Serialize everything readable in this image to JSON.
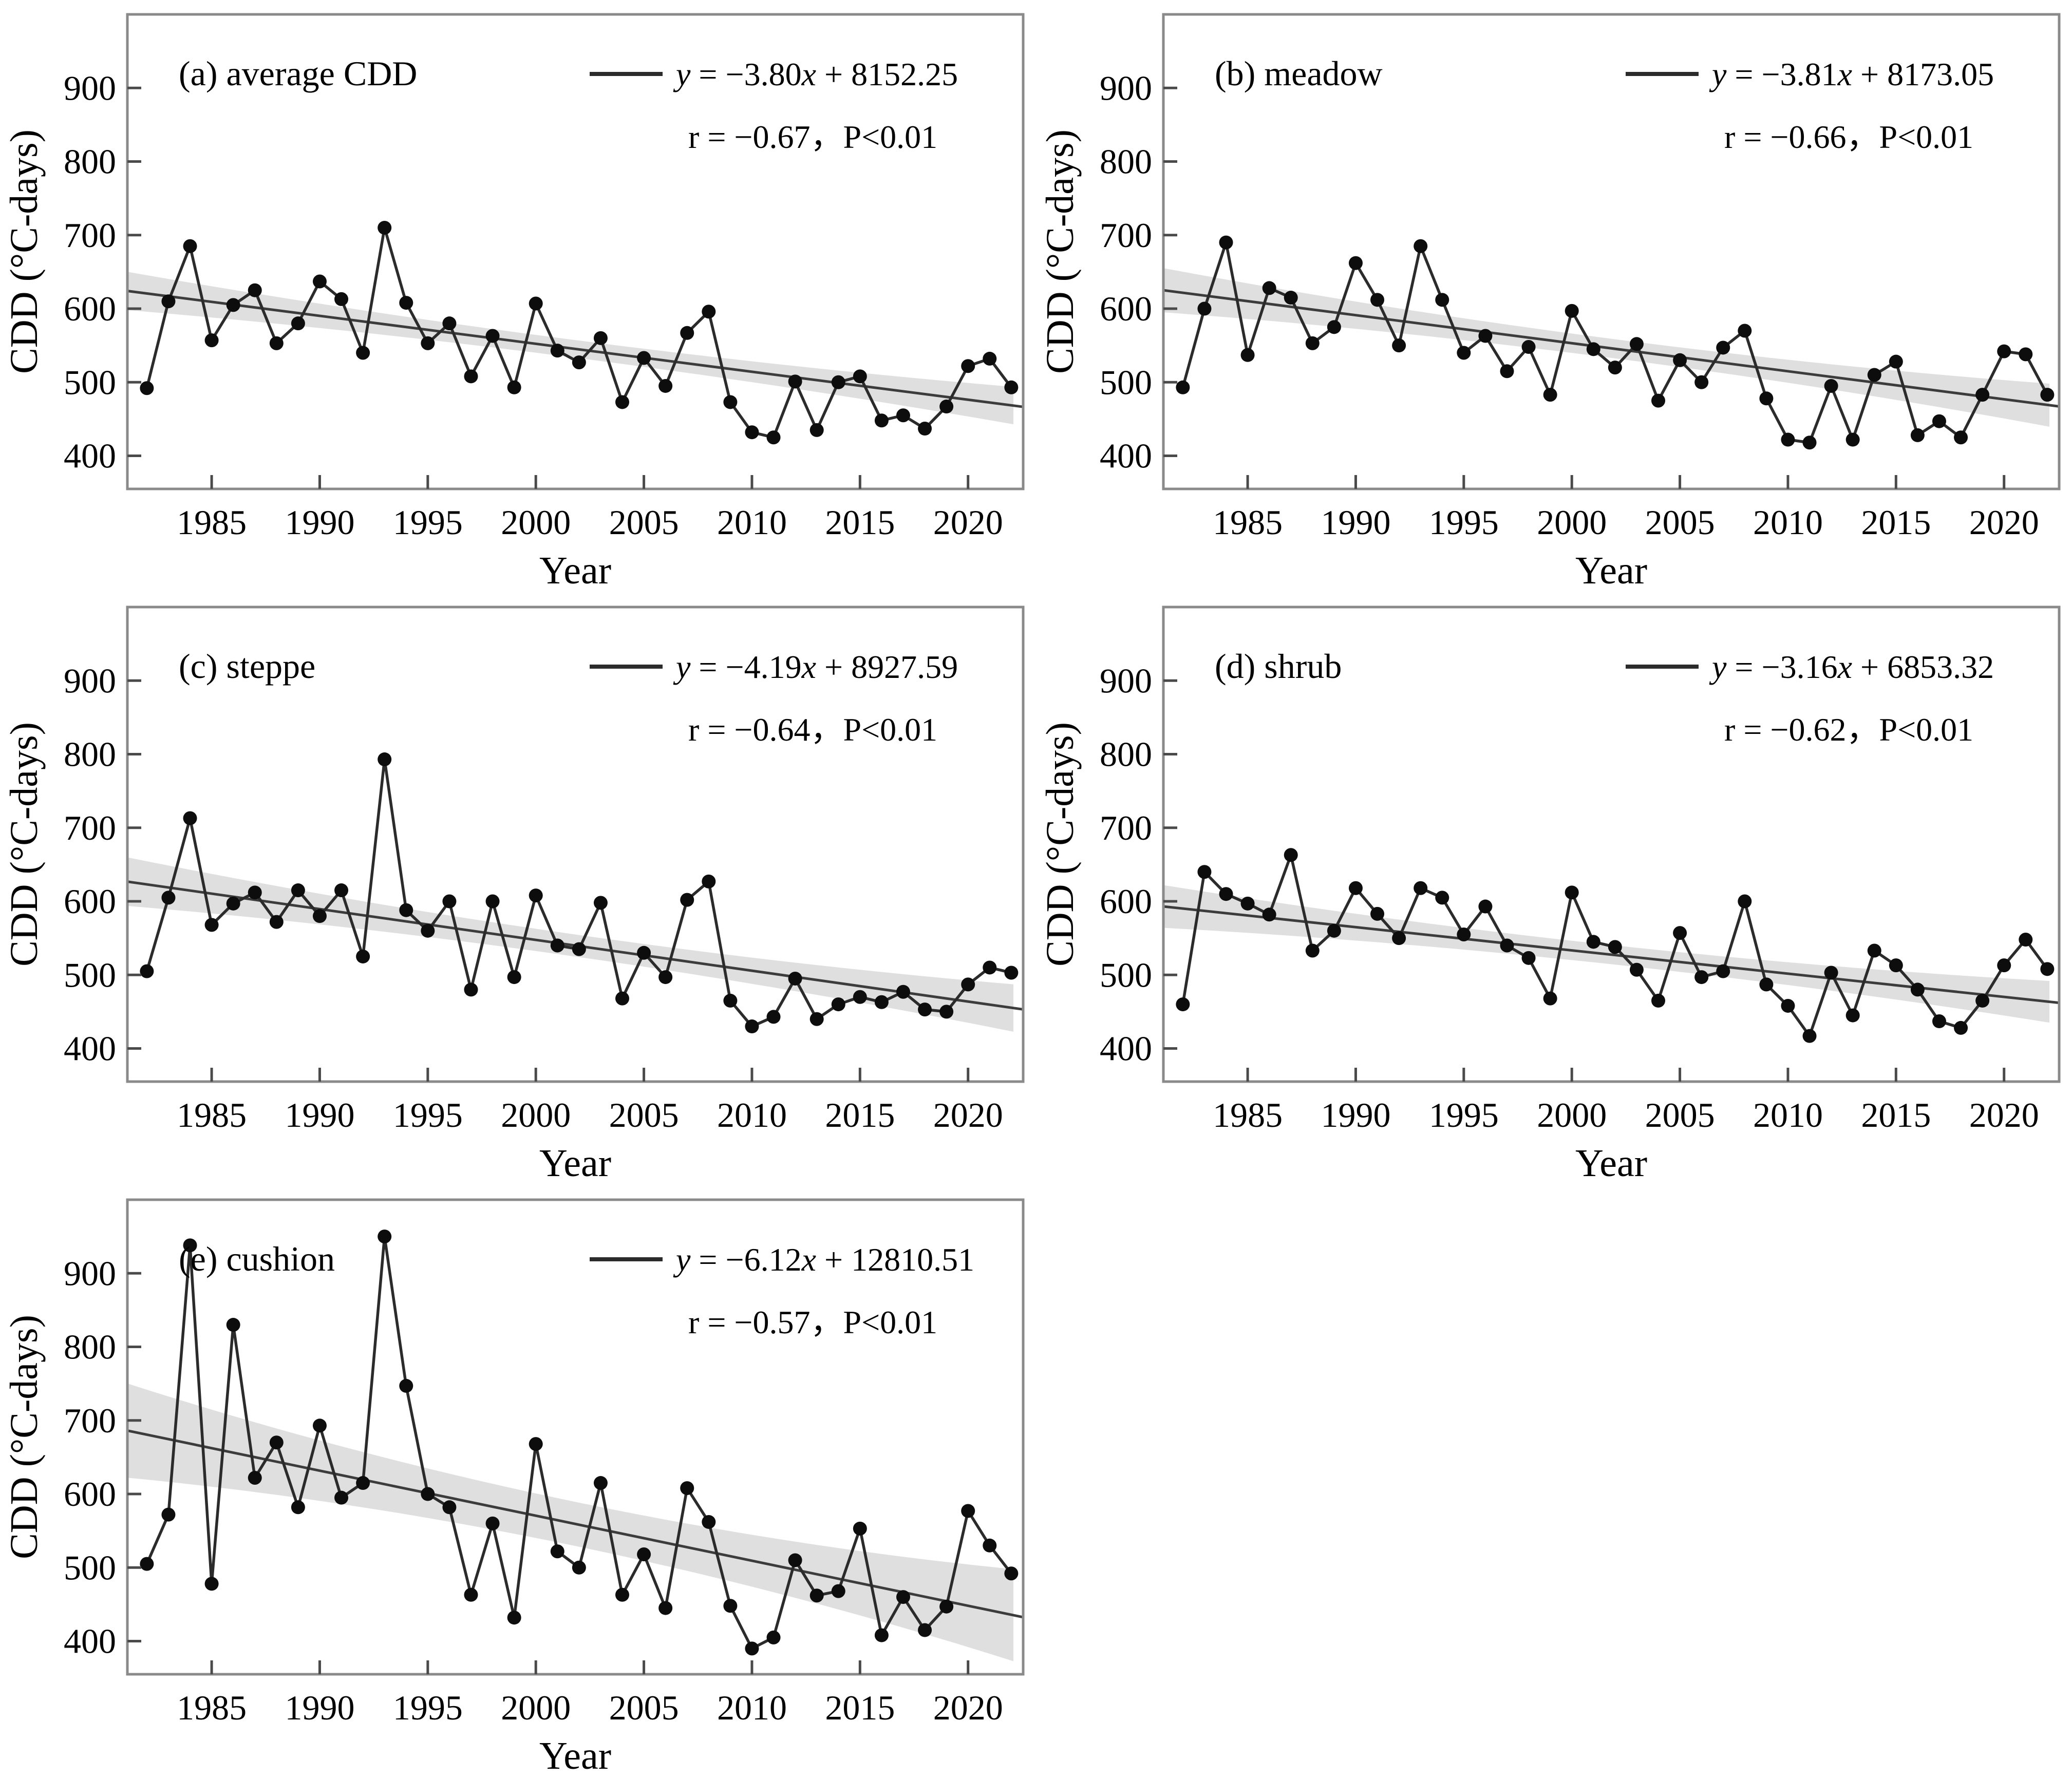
{
  "figure": {
    "xlabel": "Year",
    "ylabel": "CDD (°C-days)",
    "years": [
      1982,
      1983,
      1984,
      1985,
      1986,
      1987,
      1988,
      1989,
      1990,
      1991,
      1992,
      1993,
      1994,
      1995,
      1996,
      1997,
      1998,
      1999,
      2000,
      2001,
      2002,
      2003,
      2004,
      2005,
      2006,
      2007,
      2008,
      2009,
      2010,
      2011,
      2012,
      2013,
      2014,
      2015,
      2016,
      2017,
      2018,
      2019,
      2020,
      2021,
      2022
    ],
    "x_ticks": [
      1985,
      1990,
      1995,
      2000,
      2005,
      2010,
      2015,
      2020
    ],
    "y_ticks": [
      400,
      500,
      600,
      700,
      800,
      900
    ],
    "x_range": [
      1981.1,
      2022.55
    ],
    "y_range": [
      355,
      1000
    ],
    "grid": "off",
    "legend_position": "top-right",
    "colors": {
      "background": "#ffffff",
      "frame": "#8a8a8a",
      "tick": "#4a4a4a",
      "text": "#000000",
      "series_line": "#2b2b2b",
      "point": "#0d0d0d",
      "trend": "#3c3c3c",
      "band": "#dcdcdc"
    }
  },
  "chart_data": [
    {
      "type": "line",
      "panel": "a",
      "title": "(a) average CDD",
      "equation": {
        "lhs": "y",
        "mid": " = −3.80",
        "xvar": "x",
        "tail": " + 8152.25"
      },
      "r_text": "r = −0.67，P<0.01",
      "trend": {
        "slope": -3.8,
        "intercept": 8152.25
      },
      "band": {
        "mid": 12,
        "end": 26
      },
      "values": [
        492,
        610,
        685,
        557,
        605,
        625,
        553,
        580,
        637,
        613,
        540,
        710,
        608,
        553,
        580,
        508,
        563,
        493,
        607,
        543,
        527,
        560,
        473,
        533,
        495,
        567,
        596,
        473,
        432,
        425,
        501,
        435,
        500,
        508,
        448,
        455,
        437,
        467,
        522,
        532,
        493
      ]
    },
    {
      "type": "line",
      "panel": "b",
      "title": "(b) meadow",
      "equation": {
        "lhs": "y",
        "mid": " = −3.81",
        "xvar": "x",
        "tail": " + 8173.05"
      },
      "r_text": "r = −0.66，P<0.01",
      "trend": {
        "slope": -3.81,
        "intercept": 8173.05
      },
      "band": {
        "mid": 13,
        "end": 30
      },
      "values": [
        493,
        600,
        690,
        537,
        628,
        615,
        553,
        575,
        662,
        612,
        550,
        685,
        612,
        540,
        563,
        515,
        548,
        483,
        597,
        545,
        520,
        552,
        475,
        530,
        500,
        547,
        570,
        478,
        422,
        418,
        495,
        422,
        510,
        528,
        428,
        447,
        425,
        483,
        542,
        538,
        483
      ]
    },
    {
      "type": "line",
      "panel": "c",
      "title": "(c) steppe",
      "equation": {
        "lhs": "y",
        "mid": " = −4.19",
        "xvar": "x",
        "tail": " + 8927.59"
      },
      "r_text": "r = −0.64，P<0.01",
      "trend": {
        "slope": -4.19,
        "intercept": 8927.59
      },
      "band": {
        "mid": 15,
        "end": 33
      },
      "values": [
        505,
        605,
        713,
        568,
        597,
        612,
        572,
        615,
        580,
        615,
        525,
        793,
        588,
        560,
        600,
        480,
        600,
        497,
        608,
        540,
        535,
        598,
        468,
        530,
        497,
        602,
        627,
        465,
        430,
        443,
        495,
        440,
        460,
        470,
        463,
        477,
        453,
        450,
        487,
        510,
        503
      ]
    },
    {
      "type": "line",
      "panel": "d",
      "title": "(d) shrub",
      "equation": {
        "lhs": "y",
        "mid": " = −3.16",
        "xvar": "x",
        "tail": " + 6853.32"
      },
      "r_text": "r = −0.62，P<0.01",
      "trend": {
        "slope": -3.16,
        "intercept": 6853.32
      },
      "band": {
        "mid": 13,
        "end": 29
      },
      "values": [
        460,
        640,
        610,
        597,
        582,
        663,
        533,
        560,
        618,
        583,
        550,
        618,
        605,
        555,
        593,
        540,
        523,
        468,
        612,
        545,
        538,
        507,
        465,
        557,
        497,
        505,
        600,
        487,
        458,
        417,
        503,
        445,
        533,
        513,
        480,
        437,
        428,
        465,
        513,
        548,
        508
      ]
    },
    {
      "type": "line",
      "panel": "e",
      "title": "(e) cushion",
      "equation": {
        "lhs": "y",
        "mid": " = −6.12",
        "xvar": "x",
        "tail": " + 12810.51"
      },
      "r_text": "r = −0.57，P<0.01",
      "trend": {
        "slope": -6.12,
        "intercept": 12810.51
      },
      "band": {
        "mid": 30,
        "end": 64
      },
      "values": [
        505,
        572,
        938,
        478,
        830,
        622,
        670,
        582,
        693,
        595,
        615,
        950,
        747,
        600,
        582,
        463,
        560,
        432,
        668,
        522,
        500,
        615,
        463,
        518,
        445,
        608,
        562,
        448,
        390,
        405,
        510,
        462,
        468,
        553,
        408,
        460,
        415,
        447,
        577,
        530,
        492
      ]
    }
  ]
}
